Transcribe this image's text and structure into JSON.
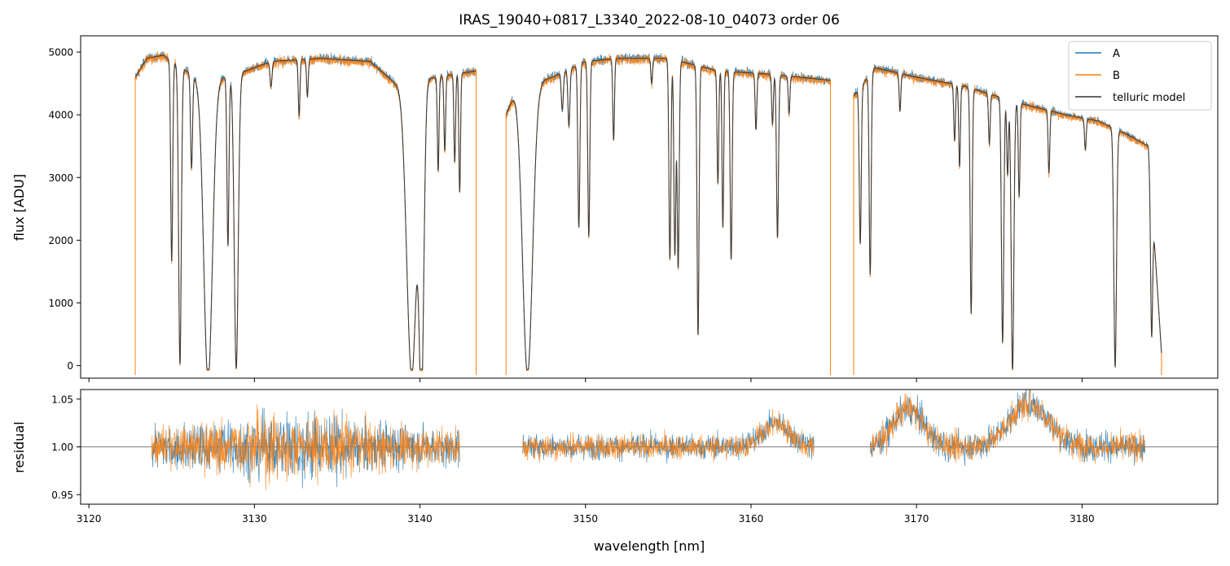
{
  "chart_data": {
    "type": "line",
    "title": "IRAS_19040+0817_L3340_2022-08-10_04073  order 06",
    "xlabel": "wavelength [nm]",
    "xlim": [
      3119.5,
      3188.2
    ],
    "x_ticks": [
      3120,
      3130,
      3140,
      3150,
      3160,
      3170,
      3180
    ],
    "x_tick_labels": [
      "3120",
      "3130",
      "3140",
      "3150",
      "3160",
      "3170",
      "3180"
    ],
    "colors": {
      "A": "#1f77b4",
      "B": "#ff7f0e",
      "model": "#333333",
      "axis": "#000000",
      "refline": "#555555"
    },
    "top_panel": {
      "ylabel": "flux [ADU]",
      "ylim": [
        -200,
        5260
      ],
      "y_ticks": [
        0,
        1000,
        2000,
        3000,
        4000,
        5000
      ],
      "y_tick_labels": [
        "0",
        "1000",
        "2000",
        "3000",
        "4000",
        "5000"
      ],
      "legend": {
        "position": "top-right",
        "entries": [
          "A",
          "B",
          "telluric model"
        ]
      },
      "segments": [
        {
          "name": "segment-1",
          "start": 3122.8,
          "end": 3143.4,
          "continuum": [
            [
              3122.8,
              4600
            ],
            [
              3123.5,
              4900
            ],
            [
              3124.5,
              4950
            ],
            [
              3127,
              4500
            ],
            [
              3129.5,
              4700
            ],
            [
              3131,
              4850
            ],
            [
              3134,
              4900
            ],
            [
              3137,
              4850
            ],
            [
              3138.5,
              4500
            ],
            [
              3141,
              4600
            ],
            [
              3143.4,
              4700
            ]
          ],
          "lines": [
            [
              3125.0,
              3200,
              0.06
            ],
            [
              3125.5,
              4750,
              0.08
            ],
            [
              3126.2,
              1500,
              0.06
            ],
            [
              3127.2,
              4750,
              0.26
            ],
            [
              3128.4,
              2700,
              0.06
            ],
            [
              3128.9,
              4700,
              0.12
            ],
            [
              3131.0,
              400,
              0.06
            ],
            [
              3132.7,
              900,
              0.05
            ],
            [
              3133.2,
              600,
              0.05
            ],
            [
              3139.5,
              4700,
              0.3
            ],
            [
              3140.1,
              4500,
              0.14
            ],
            [
              3141.1,
              1500,
              0.05
            ],
            [
              3141.5,
              1200,
              0.05
            ],
            [
              3142.1,
              1400,
              0.05
            ],
            [
              3142.4,
              1900,
              0.05
            ]
          ],
          "line_widths_nm": []
        },
        {
          "name": "segment-2",
          "start": 3145.2,
          "end": 3164.8,
          "continuum": [
            [
              3145.2,
              4000
            ],
            [
              3145.8,
              4400
            ],
            [
              3148,
              4600
            ],
            [
              3150,
              4850
            ],
            [
              3152,
              4900
            ],
            [
              3155,
              4900
            ],
            [
              3158,
              4700
            ],
            [
              3161,
              4650
            ],
            [
              3164.8,
              4550
            ]
          ],
          "lines": [
            [
              3146.5,
              4600,
              0.3
            ],
            [
              3148.6,
              600,
              0.06
            ],
            [
              3149.0,
              900,
              0.06
            ],
            [
              3149.6,
              2600,
              0.06
            ],
            [
              3150.2,
              2800,
              0.06
            ],
            [
              3151.7,
              1300,
              0.05
            ],
            [
              3154.0,
              400,
              0.05
            ],
            [
              3155.1,
              3200,
              0.06
            ],
            [
              3155.4,
              3100,
              0.06
            ],
            [
              3155.6,
              3300,
              0.06
            ],
            [
              3156.8,
              4300,
              0.06
            ],
            [
              3158.0,
              1800,
              0.05
            ],
            [
              3158.3,
              2500,
              0.05
            ],
            [
              3158.8,
              3000,
              0.06
            ],
            [
              3160.3,
              900,
              0.05
            ],
            [
              3161.3,
              800,
              0.05
            ],
            [
              3161.6,
              2600,
              0.06
            ],
            [
              3162.3,
              600,
              0.05
            ]
          ]
        },
        {
          "name": "segment-3",
          "start": 3166.2,
          "end": 3184.8,
          "continuum": [
            [
              3166.2,
              4300
            ],
            [
              3167.5,
              4750
            ],
            [
              3170,
              4600
            ],
            [
              3173,
              4450
            ],
            [
              3176,
              4200
            ],
            [
              3179,
              4000
            ],
            [
              3181,
              3900
            ],
            [
              3183,
              3650
            ],
            [
              3184.0,
              3500
            ],
            [
              3184.8,
              200
            ]
          ],
          "lines": [
            [
              3166.6,
              2500,
              0.06
            ],
            [
              3167.2,
              3200,
              0.06
            ],
            [
              3169.0,
              600,
              0.05
            ],
            [
              3172.3,
              900,
              0.05
            ],
            [
              3172.6,
              1300,
              0.05
            ],
            [
              3173.3,
              3600,
              0.06
            ],
            [
              3174.4,
              800,
              0.05
            ],
            [
              3175.2,
              3900,
              0.07
            ],
            [
              3175.5,
              1200,
              0.05
            ],
            [
              3175.8,
              4300,
              0.08
            ],
            [
              3176.2,
              1500,
              0.05
            ],
            [
              3178.0,
              1000,
              0.05
            ],
            [
              3180.2,
              500,
              0.05
            ],
            [
              3182.0,
              3800,
              0.08
            ],
            [
              3184.2,
              2200,
              0.06
            ]
          ]
        }
      ]
    },
    "bottom_panel": {
      "ylabel": "residual",
      "ylim": [
        0.94,
        1.06
      ],
      "y_ticks": [
        0.95,
        1.0,
        1.05
      ],
      "y_tick_labels": [
        "0.95",
        "1.00",
        "1.05"
      ],
      "reference_line": 1.0,
      "segments": [
        {
          "name": "residual-segment-1",
          "start": 3123.8,
          "end": 3142.4,
          "scatter": 0.018,
          "peak_scatter_center": 3132.5,
          "peak_scatter": 0.035
        },
        {
          "name": "residual-segment-2",
          "start": 3146.2,
          "end": 3163.8,
          "scatter": 0.013,
          "bump": [
            3161.5,
            0.025,
            0.8
          ]
        },
        {
          "name": "residual-segment-3",
          "start": 3167.2,
          "end": 3183.8,
          "scatter": 0.015,
          "bump": [
            3169.5,
            0.04,
            0.9
          ],
          "bump2": [
            3176.8,
            0.045,
            1.2
          ]
        }
      ]
    },
    "series": [
      {
        "name": "A",
        "color": "#1f77b4"
      },
      {
        "name": "B",
        "color": "#ff7f0e"
      },
      {
        "name": "telluric model",
        "color": "#333333"
      }
    ]
  }
}
